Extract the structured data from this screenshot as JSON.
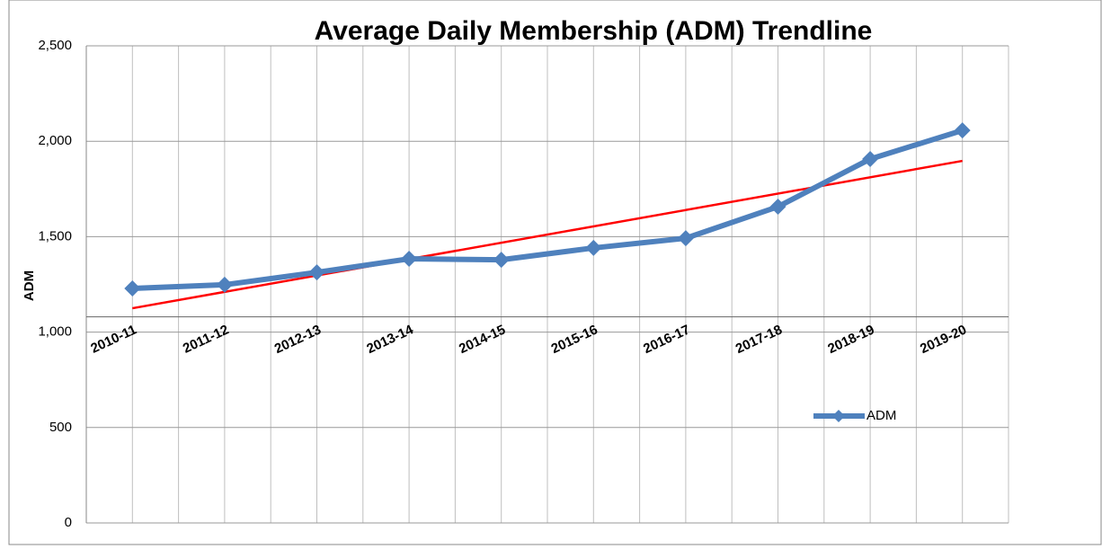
{
  "chart_data": {
    "type": "line",
    "title": "Average Daily Membership (ADM) Trendline",
    "y_label": "ADM",
    "categories": [
      "2010-11",
      "2011-12",
      "2012-13",
      "2013-14",
      "2014-15",
      "2015-16",
      "2016-17",
      "2017-18",
      "2018-19",
      "2019-20"
    ],
    "series": [
      {
        "name": "ADM",
        "color": "#4f81bd",
        "values": [
          1229,
          1248,
          1313,
          1384,
          1379,
          1441,
          1492,
          1657,
          1907,
          2057
        ]
      }
    ],
    "trendline": {
      "color": "#ff0000",
      "values": [
        1125,
        1897
      ]
    },
    "x_axis_crosses": 1080,
    "ylim": [
      0,
      2500
    ],
    "yticks": [
      0,
      500,
      {
        "value": 1000,
        "label": "1,000"
      },
      {
        "value": 1500,
        "label": "1,500"
      },
      {
        "value": 2000,
        "label": "2,000"
      },
      {
        "value": 2500,
        "label": "2,500"
      }
    ],
    "grid": true
  }
}
